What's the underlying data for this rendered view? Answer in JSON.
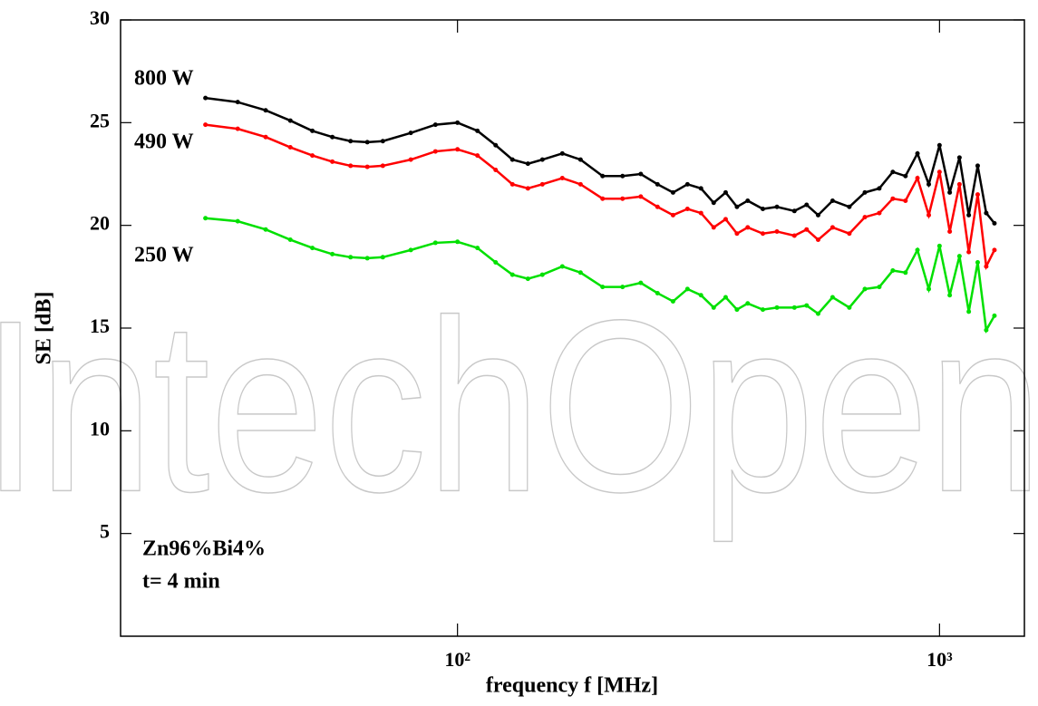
{
  "chart_data": {
    "type": "line",
    "watermark": "IntechOpen",
    "x_label": "frequency f [MHz]",
    "y_label": "SE [dB]",
    "annotations": [
      "Zn96%Bi4%",
      "t= 4 min"
    ],
    "xscale": "log",
    "xlim": [
      20,
      1500
    ],
    "xticks": [
      {
        "value": 100,
        "label": "10²"
      },
      {
        "value": 1000,
        "label": "10³"
      }
    ],
    "ylim": [
      0,
      30
    ],
    "yticks": [
      5,
      10,
      15,
      20,
      25,
      30
    ],
    "x": [
      30,
      35,
      40,
      45,
      50,
      55,
      60,
      65,
      70,
      80,
      90,
      100,
      110,
      120,
      130,
      140,
      150,
      165,
      180,
      200,
      220,
      240,
      260,
      280,
      300,
      320,
      340,
      360,
      380,
      400,
      430,
      460,
      500,
      530,
      560,
      600,
      650,
      700,
      750,
      800,
      850,
      900,
      950,
      1000,
      1050,
      1100,
      1150,
      1200,
      1250,
      1300
    ],
    "series": [
      {
        "name": "800 W",
        "color": "#000000",
        "values": [
          26.2,
          26.0,
          25.6,
          25.1,
          24.6,
          24.3,
          24.1,
          24.05,
          24.1,
          24.5,
          24.9,
          25.0,
          24.6,
          23.9,
          23.2,
          23.0,
          23.2,
          23.5,
          23.2,
          22.4,
          22.4,
          22.5,
          22.0,
          21.6,
          22.0,
          21.8,
          21.1,
          21.6,
          20.9,
          21.2,
          20.8,
          20.9,
          20.7,
          21.0,
          20.5,
          21.2,
          20.9,
          21.6,
          21.8,
          22.6,
          22.4,
          23.5,
          22.0,
          23.9,
          21.6,
          23.3,
          20.5,
          22.9,
          20.6,
          20.1
        ]
      },
      {
        "name": "490 W",
        "color": "#ff0000",
        "values": [
          24.9,
          24.7,
          24.3,
          23.8,
          23.4,
          23.1,
          22.9,
          22.85,
          22.9,
          23.2,
          23.6,
          23.7,
          23.4,
          22.7,
          22.0,
          21.8,
          22.0,
          22.3,
          22.0,
          21.3,
          21.3,
          21.4,
          20.9,
          20.5,
          20.8,
          20.6,
          19.9,
          20.3,
          19.6,
          19.9,
          19.6,
          19.7,
          19.5,
          19.8,
          19.3,
          19.9,
          19.6,
          20.4,
          20.6,
          21.3,
          21.2,
          22.3,
          20.5,
          22.6,
          19.7,
          22.0,
          18.7,
          21.5,
          18.0,
          18.8
        ]
      },
      {
        "name": "250 W",
        "color": "#00e000",
        "values": [
          20.35,
          20.2,
          19.8,
          19.3,
          18.9,
          18.6,
          18.45,
          18.4,
          18.45,
          18.8,
          19.15,
          19.2,
          18.9,
          18.2,
          17.6,
          17.4,
          17.6,
          18.0,
          17.7,
          17.0,
          17.0,
          17.2,
          16.7,
          16.3,
          16.9,
          16.6,
          16.0,
          16.5,
          15.9,
          16.2,
          15.9,
          16.0,
          16.0,
          16.1,
          15.7,
          16.5,
          16.0,
          16.9,
          17.0,
          17.8,
          17.7,
          18.8,
          16.9,
          19.0,
          16.6,
          18.5,
          15.8,
          18.2,
          14.9,
          15.6
        ]
      }
    ]
  }
}
